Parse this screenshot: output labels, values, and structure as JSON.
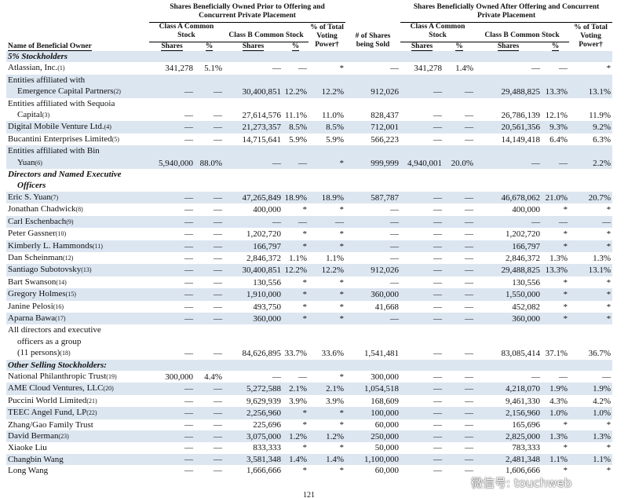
{
  "header": {
    "groups": [
      "Shares Beneficially Owned Prior to Offering and Concurrent Private Placement",
      "Shares Beneficially Owned After Offering and Concurrent Private Placement"
    ],
    "subheaders": [
      "Class A Common Stock",
      "Class B Common Stock",
      "% of Total Voting Power†",
      "# of Shares being Sold",
      "Class A Common Stock",
      "Class B Common Stock",
      "% of Total Voting Power†"
    ],
    "name_header": "Name of Beneficial Owner",
    "columns": [
      "Shares",
      "%",
      "Shares",
      "%",
      "Shares",
      "%",
      "Shares",
      "%"
    ]
  },
  "sections": [
    {
      "title": [
        "5% Stockholders"
      ],
      "rows": [
        {
          "name": [
            "Atlassian, Inc."
          ],
          "note": "(1)",
          "cells": [
            "341,278",
            "5.1%",
            "—",
            "—",
            "*",
            "—",
            "341,278",
            "1.4%",
            "—",
            "—",
            "*"
          ]
        },
        {
          "name": [
            "Entities affiliated with",
            "Emergence Capital Partners"
          ],
          "note": "(2)",
          "cells": [
            "—",
            "—",
            "30,400,851",
            "12.2%",
            "12.2%",
            "912,026",
            "—",
            "—",
            "29,488,825",
            "13.3%",
            "13.1%"
          ]
        },
        {
          "name": [
            "Entities affiliated with Sequoia",
            "Capital"
          ],
          "note": "(3)",
          "cells": [
            "—",
            "—",
            "27,614,576",
            "11.1%",
            "11.0%",
            "828,437",
            "—",
            "—",
            "26,786,139",
            "12.1%",
            "11.9%"
          ]
        },
        {
          "name": [
            "Digital Mobile Venture Ltd."
          ],
          "note": "(4)",
          "cells": [
            "—",
            "—",
            "21,273,357",
            "8.5%",
            "8.5%",
            "712,001",
            "—",
            "—",
            "20,561,356",
            "9.3%",
            "9.2%"
          ]
        },
        {
          "name": [
            "Bucantini Enterprises Limited"
          ],
          "note": "(5)",
          "cells": [
            "—",
            "—",
            "14,715,641",
            "5.9%",
            "5.9%",
            "566,223",
            "—",
            "—",
            "14,149,418",
            "6.4%",
            "6.3%"
          ]
        },
        {
          "name": [
            "Entities affiliated with Bin",
            "Yuan"
          ],
          "note": "(6)",
          "cells": [
            "5,940,000",
            "88.0%",
            "—",
            "—",
            "*",
            "999,999",
            "4,940,001",
            "20.0%",
            "—",
            "—",
            "2.2%"
          ]
        }
      ]
    },
    {
      "title": [
        "Directors and Named Executive",
        "Officers"
      ],
      "rows": [
        {
          "name": [
            "Eric S. Yuan"
          ],
          "note": "(7)",
          "cells": [
            "—",
            "—",
            "47,265,849",
            "18.9%",
            "18.9%",
            "587,787",
            "—",
            "—",
            "46,678,062",
            "21.0%",
            "20.7%"
          ]
        },
        {
          "name": [
            "Jonathan Chadwick"
          ],
          "note": "(8)",
          "cells": [
            "—",
            "—",
            "400,000",
            "*",
            "*",
            "—",
            "—",
            "—",
            "400,000",
            "*",
            "*"
          ]
        },
        {
          "name": [
            "Carl Eschenbach"
          ],
          "note": "(9)",
          "cells": [
            "—",
            "—",
            "—",
            "—",
            "—",
            "—",
            "—",
            "—",
            "—",
            "—",
            "—"
          ]
        },
        {
          "name": [
            "Peter Gassner"
          ],
          "note": "(10)",
          "cells": [
            "—",
            "—",
            "1,202,720",
            "*",
            "*",
            "—",
            "—",
            "—",
            "1,202,720",
            "*",
            "*"
          ]
        },
        {
          "name": [
            "Kimberly L. Hammonds"
          ],
          "note": "(11)",
          "cells": [
            "—",
            "—",
            "166,797",
            "*",
            "*",
            "—",
            "—",
            "—",
            "166,797",
            "*",
            "*"
          ]
        },
        {
          "name": [
            "Dan Scheinman"
          ],
          "note": "(12)",
          "cells": [
            "—",
            "—",
            "2,846,372",
            "1.1%",
            "1.1%",
            "—",
            "—",
            "—",
            "2,846,372",
            "1.3%",
            "1.3%"
          ]
        },
        {
          "name": [
            "Santiago Subotovsky"
          ],
          "note": "(13)",
          "cells": [
            "—",
            "—",
            "30,400,851",
            "12.2%",
            "12.2%",
            "912,026",
            "—",
            "—",
            "29,488,825",
            "13.3%",
            "13.1%"
          ]
        },
        {
          "name": [
            "Bart Swanson"
          ],
          "note": "(14)",
          "cells": [
            "—",
            "—",
            "130,556",
            "*",
            "*",
            "—",
            "—",
            "—",
            "130,556",
            "*",
            "*"
          ]
        },
        {
          "name": [
            "Gregory Holmes"
          ],
          "note": "(15)",
          "cells": [
            "—",
            "—",
            "1,910,000",
            "*",
            "*",
            "360,000",
            "—",
            "—",
            "1,550,000",
            "*",
            "*"
          ]
        },
        {
          "name": [
            "Janine Pelosi"
          ],
          "note": "(16)",
          "cells": [
            "—",
            "—",
            "493,750",
            "*",
            "*",
            "41,668",
            "—",
            "—",
            "452,082",
            "*",
            "*"
          ]
        },
        {
          "name": [
            "Aparna Bawa"
          ],
          "note": "(17)",
          "cells": [
            "—",
            "—",
            "360,000",
            "*",
            "*",
            "—",
            "—",
            "—",
            "360,000",
            "*",
            "*"
          ]
        },
        {
          "name": [
            "All directors and executive",
            "officers as a group",
            "(11 persons)"
          ],
          "note": "(18)",
          "cells": [
            "—",
            "—",
            "84,626,895",
            "33.7%",
            "33.6%",
            "1,541,481",
            "—",
            "—",
            "83,085,414",
            "37.1%",
            "36.7%"
          ]
        }
      ]
    },
    {
      "title": [
        "Other Selling Stockholders:"
      ],
      "rows": [
        {
          "name": [
            "National Philanthropic Trust"
          ],
          "note": "(19)",
          "cells": [
            "300,000",
            "4.4%",
            "—",
            "—",
            "*",
            "300,000",
            "—",
            "—",
            "—",
            "—",
            "—"
          ]
        },
        {
          "name": [
            "AME Cloud Ventures, LLC"
          ],
          "note": "(20)",
          "cells": [
            "—",
            "—",
            "5,272,588",
            "2.1%",
            "2.1%",
            "1,054,518",
            "—",
            "—",
            "4,218,070",
            "1.9%",
            "1.9%"
          ]
        },
        {
          "name": [
            "Puccini World Limited"
          ],
          "note": "(21)",
          "cells": [
            "—",
            "—",
            "9,629,939",
            "3.9%",
            "3.9%",
            "168,609",
            "—",
            "—",
            "9,461,330",
            "4.3%",
            "4.2%"
          ]
        },
        {
          "name": [
            "TEEC Angel Fund, LP"
          ],
          "note": "(22)",
          "cells": [
            "—",
            "—",
            "2,256,960",
            "*",
            "*",
            "100,000",
            "—",
            "—",
            "2,156,960",
            "1.0%",
            "1.0%"
          ]
        },
        {
          "name": [
            "Zhang/Gao Family Trust"
          ],
          "cells": [
            "—",
            "—",
            "225,696",
            "*",
            "*",
            "60,000",
            "—",
            "—",
            "165,696",
            "*",
            "*"
          ]
        },
        {
          "name": [
            "David Berman"
          ],
          "note": "(23)",
          "cells": [
            "—",
            "—",
            "3,075,000",
            "1.2%",
            "1.2%",
            "250,000",
            "—",
            "—",
            "2,825,000",
            "1.3%",
            "1.3%"
          ]
        },
        {
          "name": [
            "Xiaoke Liu"
          ],
          "cells": [
            "—",
            "—",
            "833,333",
            "*",
            "*",
            "50,000",
            "—",
            "—",
            "783,333",
            "*",
            "*"
          ]
        },
        {
          "name": [
            "Changbin Wang"
          ],
          "cells": [
            "—",
            "—",
            "3,581,348",
            "1.4%",
            "1.4%",
            "1,100,000",
            "—",
            "—",
            "2,481,348",
            "1.1%",
            "1.1%"
          ]
        },
        {
          "name": [
            "Long Wang"
          ],
          "cells": [
            "—",
            "—",
            "1,666,666",
            "*",
            "*",
            "60,000",
            "—",
            "—",
            "1,606,666",
            "*",
            "*"
          ]
        }
      ]
    }
  ],
  "page_number": "121",
  "watermark": "微信号: touchweb"
}
